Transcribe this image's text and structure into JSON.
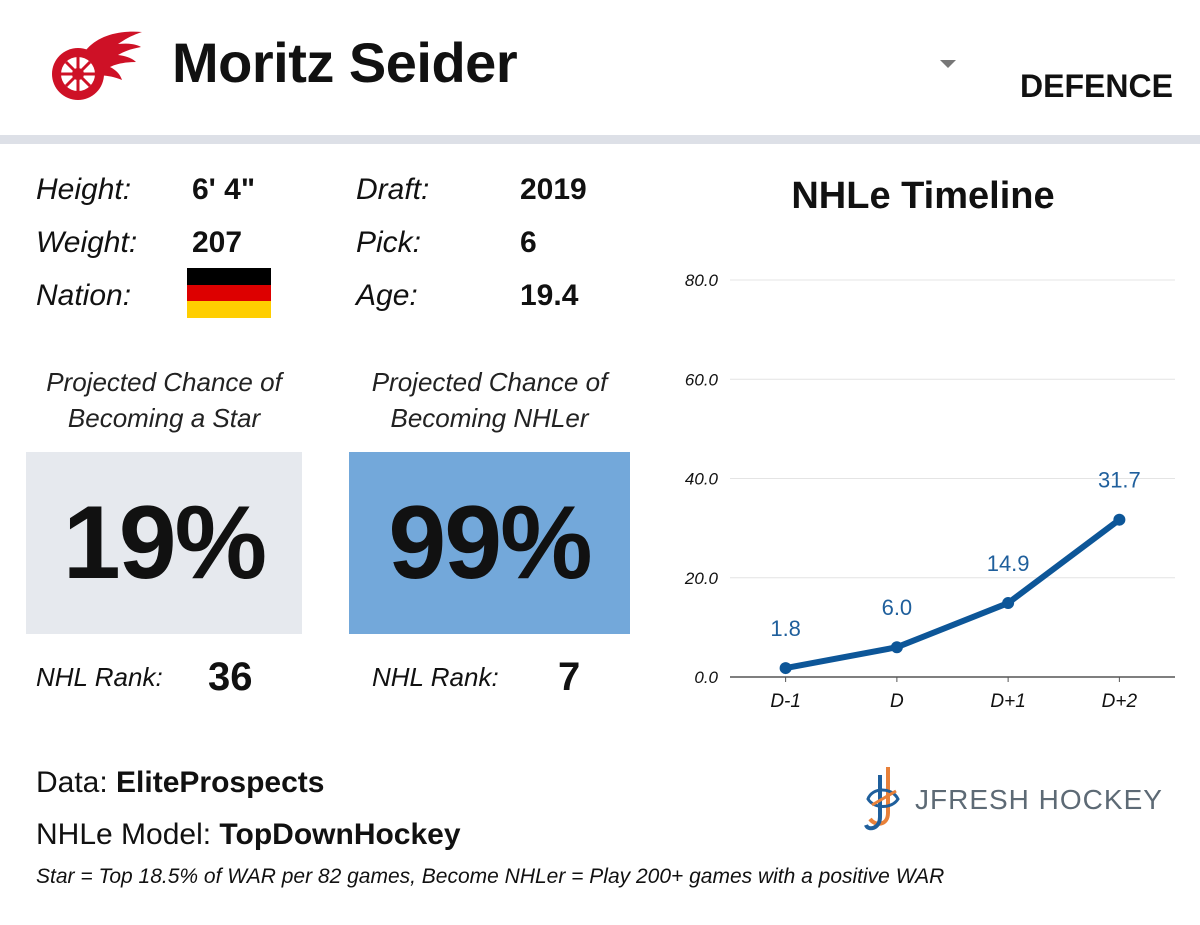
{
  "header": {
    "player_name": "Moritz Seider",
    "position": "DEFENCE",
    "team_logo_icon": "red-wings-logo-icon",
    "team_color": "#ce1126"
  },
  "bio": {
    "height_label": "Height:",
    "height_value": "6' 4\"",
    "weight_label": "Weight:",
    "weight_value": "207",
    "nation_label": "Nation:",
    "nation_flag_icon": "germany-flag-icon",
    "flag_colors": [
      "#000000",
      "#dd0000",
      "#ffce00"
    ],
    "draft_label": "Draft:",
    "draft_value": "2019",
    "pick_label": "Pick:",
    "pick_value": "6",
    "age_label": "Age:",
    "age_value": "19.4"
  },
  "projections": {
    "star": {
      "title_line1": "Projected Chance of",
      "title_line2": "Becoming a Star",
      "value": "19%",
      "probability": 0.19,
      "box_color": "#e6e9ee",
      "rank_label": "NHL Rank:",
      "rank_value": "36"
    },
    "nhler": {
      "title_line1": "Projected Chance of",
      "title_line2": "Becoming NHLer",
      "value": "99%",
      "probability": 0.99,
      "box_color": "#73a8da",
      "rank_label": "NHL Rank:",
      "rank_value": "7"
    }
  },
  "chart_data": {
    "type": "line",
    "title": "NHLe Timeline",
    "categories": [
      "D-1",
      "D",
      "D+1",
      "D+2"
    ],
    "series": [
      {
        "values": [
          1.8,
          6.0,
          14.9,
          31.7
        ],
        "labels": [
          "1.8",
          "6.0",
          "14.9",
          "31.7"
        ]
      }
    ],
    "ylim": [
      0,
      80
    ],
    "yticks": [
      0,
      20,
      40,
      60,
      80
    ],
    "ytick_labels": [
      "0.0",
      "20.0",
      "40.0",
      "60.0",
      "80.0"
    ],
    "grid": true,
    "line_color": "#0d5698",
    "label_color": "#1f5f9c"
  },
  "footer": {
    "data_prefix": "Data: ",
    "data_source": "EliteProspects",
    "model_prefix": "NHLe Model: ",
    "model_source": "TopDownHockey",
    "footnote": "Star = Top 18.5% of WAR per 82 games, Become NHLer = Play 200+ games with a positive WAR",
    "brand_name": "JFRESH HOCKEY",
    "brand_icon": "jfresh-hockey-logo-icon"
  }
}
